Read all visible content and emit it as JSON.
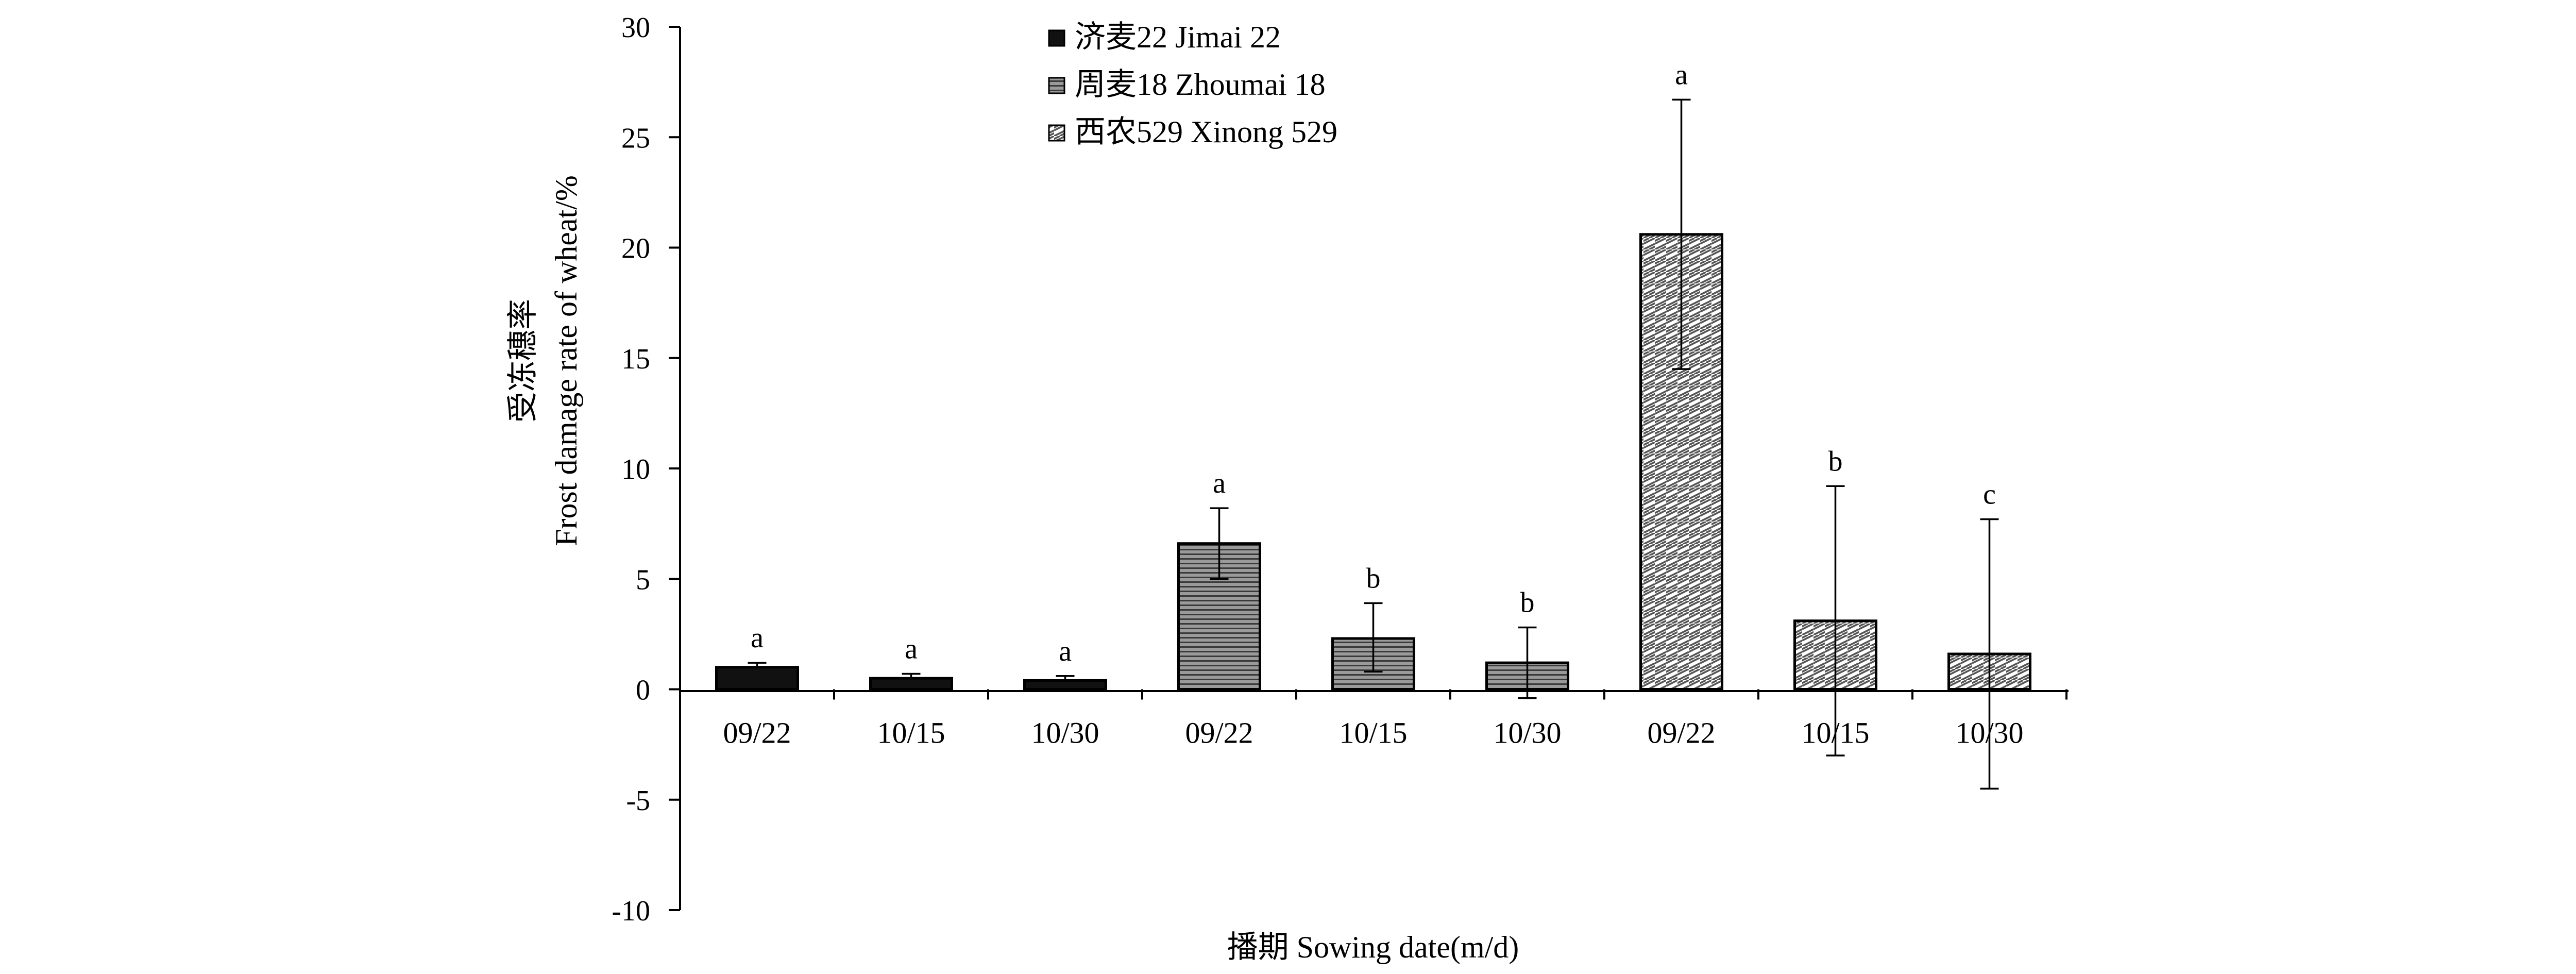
{
  "chart_data": {
    "type": "bar",
    "xlabel": "播期 Sowing date(m/d)",
    "ylabel_cn": "受冻穗率",
    "ylabel_en": "Frost damage rate of wheat/%",
    "ylim": [
      -10,
      30
    ],
    "yticks": [
      -10,
      -5,
      0,
      5,
      10,
      15,
      20,
      25,
      30
    ],
    "grid": false,
    "legend_position": "top-center",
    "series": [
      {
        "name": "济麦22 Jimai 22",
        "pattern": "solid-black",
        "color": "#111111",
        "categories": [
          "09/22",
          "10/15",
          "10/30"
        ],
        "values": [
          1.0,
          0.5,
          0.4
        ],
        "error_high": [
          1.2,
          0.7,
          0.6
        ],
        "error_low": [
          1.0,
          0.5,
          0.4
        ],
        "letters": [
          "a",
          "a",
          "a"
        ]
      },
      {
        "name": "周麦18 Zhoumai 18",
        "pattern": "gray-horizontal-lines",
        "color": "#7a7a7a",
        "categories": [
          "09/22",
          "10/15",
          "10/30"
        ],
        "values": [
          6.6,
          2.3,
          1.2
        ],
        "error_high": [
          8.2,
          3.9,
          2.8
        ],
        "error_low": [
          5.0,
          0.8,
          -0.4
        ],
        "letters": [
          "a",
          "b",
          "b"
        ]
      },
      {
        "name": "西农529 Xinong 529",
        "pattern": "white-diagonal-hatch",
        "color": "#ffffff",
        "categories": [
          "09/22",
          "10/15",
          "10/30"
        ],
        "values": [
          20.6,
          3.1,
          1.6
        ],
        "error_high": [
          26.7,
          9.2,
          7.7
        ],
        "error_low": [
          14.5,
          -3.0,
          -4.5
        ],
        "letters": [
          "a",
          "b",
          "c"
        ]
      }
    ]
  }
}
